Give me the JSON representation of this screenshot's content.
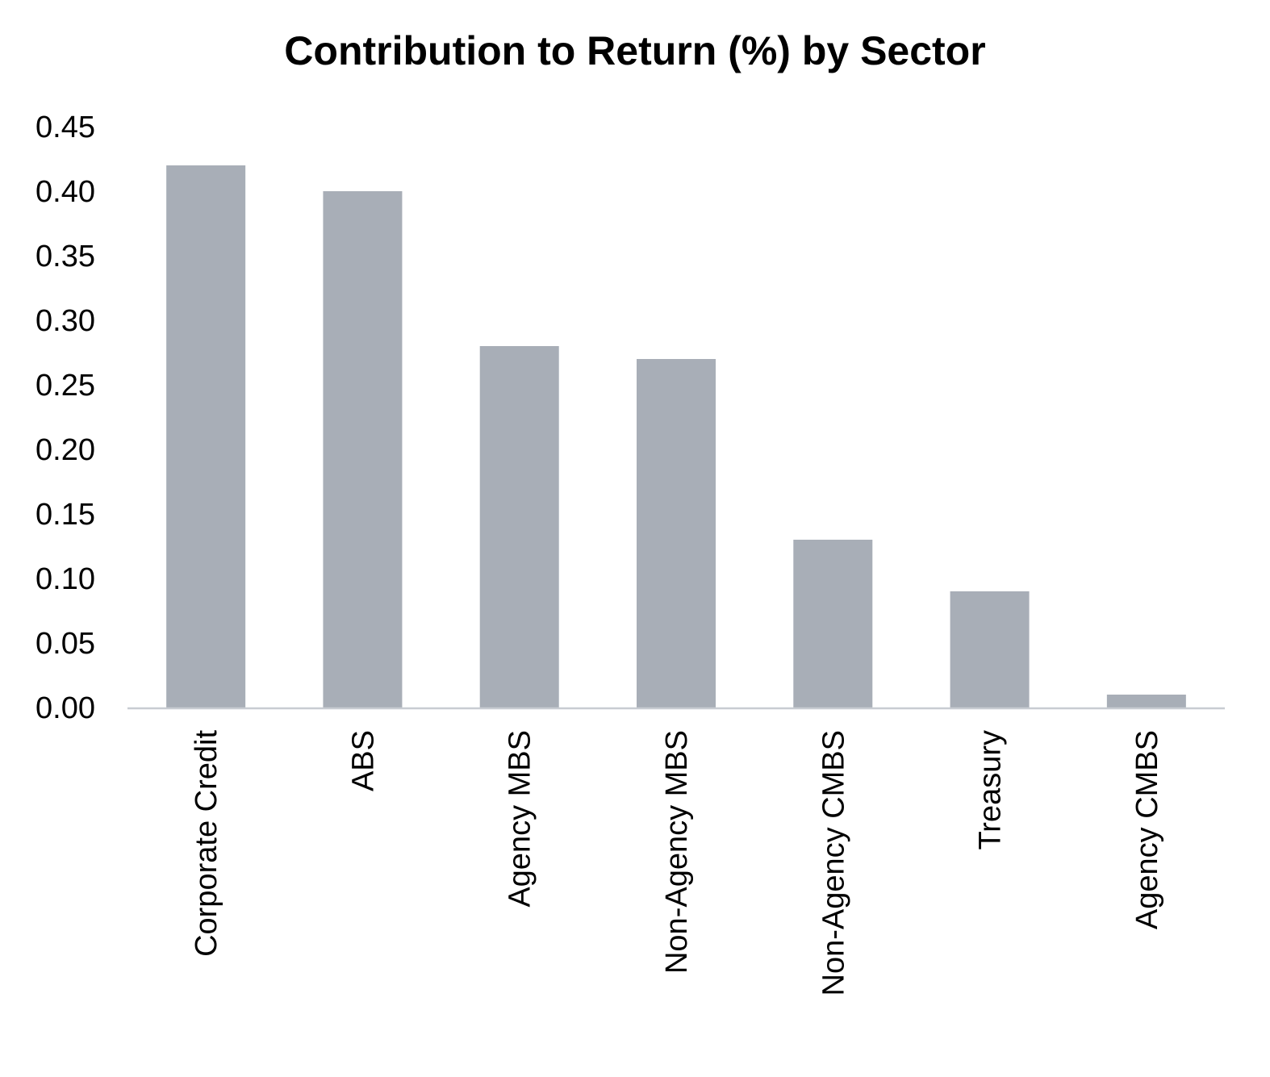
{
  "chart_data": {
    "type": "bar",
    "title": "Contribution to Return (%) by Sector",
    "xlabel": "",
    "ylabel": "",
    "categories": [
      "Corporate Credit",
      "ABS",
      "Agency MBS",
      "Non-Agency MBS",
      "Non-Agency CMBS",
      "Treasury",
      "Agency CMBS"
    ],
    "values": [
      0.42,
      0.4,
      0.28,
      0.27,
      0.13,
      0.09,
      0.01
    ],
    "ylim": [
      0,
      0.45
    ],
    "yticks": [
      "0.00",
      "0.05",
      "0.10",
      "0.15",
      "0.20",
      "0.25",
      "0.30",
      "0.35",
      "0.40",
      "0.45"
    ],
    "grid": false,
    "legend": "none",
    "bar_color": "#a8aeb7",
    "axis_color": "#c8ccd2"
  }
}
